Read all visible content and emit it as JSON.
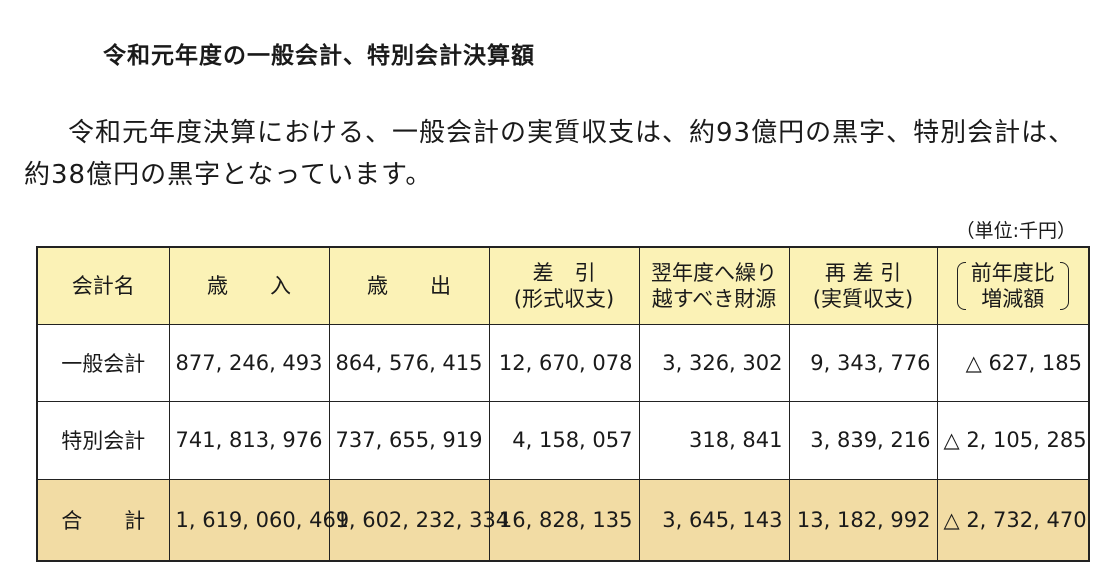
{
  "title": "令和元年度の一般会計、特別会計決算額",
  "paragraph": "令和元年度決算における、一般会計の実質収支は、約93億円の黒字、特別会計は、約38億円の黒字となっています。",
  "unit": "（単位:千円）",
  "table": {
    "headers": [
      [
        "会計名"
      ],
      [
        "歳　　入"
      ],
      [
        "歳　　出"
      ],
      [
        "差　引",
        "(形式収支)"
      ],
      [
        "翌年度へ繰り",
        "越すべき財源"
      ],
      [
        "再 差 引",
        "(実質収支)"
      ],
      [
        "前年度比",
        "増減額"
      ]
    ],
    "rows": [
      [
        "一般会計",
        "877, 246, 493",
        "864, 576, 415",
        "12, 670, 078",
        "3, 326, 302",
        "9, 343, 776",
        "△ 627, 185"
      ],
      [
        "特別会計",
        "741, 813, 976",
        "737, 655, 919",
        "4, 158, 057",
        "318, 841",
        "3, 839, 216",
        "△ 2, 105, 285"
      ],
      [
        "合　　計",
        "1, 619, 060, 469",
        "1, 602, 232, 334",
        "16, 828, 135",
        "3, 645, 143",
        "13, 182, 992",
        "△ 2, 732, 470"
      ]
    ]
  }
}
